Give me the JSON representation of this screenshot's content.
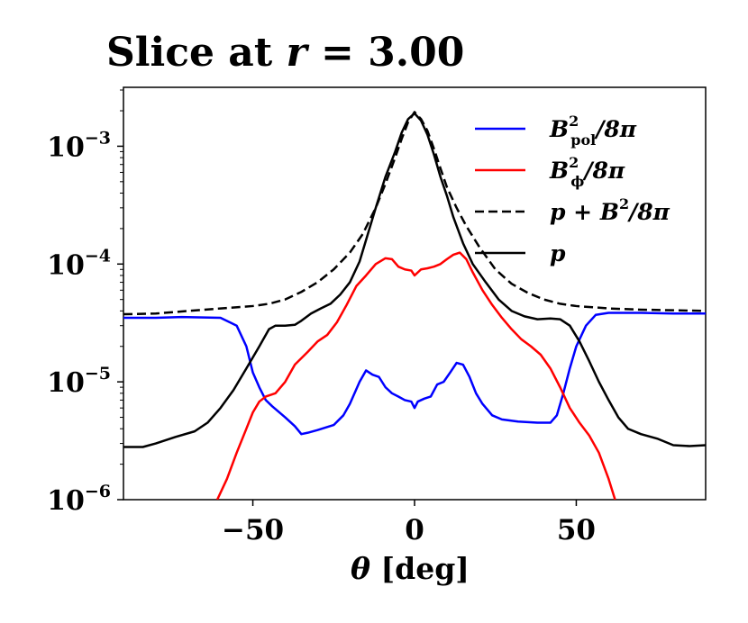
{
  "chart_data": {
    "type": "line",
    "title_prefix": "Slice at ",
    "title_var": "r",
    "title_eq": " = ",
    "title_value": "3.00",
    "xlabel_symbol": "θ",
    "xlabel_unit": " [deg]",
    "xlim": [
      -90,
      90
    ],
    "ylim_log10": [
      -6,
      -2.5
    ],
    "yscale": "log",
    "x_ticks": [
      -50,
      0,
      50
    ],
    "x_tick_labels": [
      "−50",
      "0",
      "50"
    ],
    "y_ticks": [
      {
        "exp": -3,
        "base": "10",
        "exp_label": "−3"
      },
      {
        "exp": -4,
        "base": "10",
        "exp_label": "−4"
      },
      {
        "exp": -5,
        "base": "10",
        "exp_label": "−5"
      },
      {
        "exp": -6,
        "base": "10",
        "exp_label": "−6"
      }
    ],
    "legend_position": "top-right",
    "series": [
      {
        "name": "B_pol^2/8π",
        "label_main": "B",
        "label_sup": "2",
        "label_sub": "pol",
        "label_rest": "/8π",
        "color": "#0000ff",
        "style": "solid",
        "points": [
          [
            -90,
            3.5e-05
          ],
          [
            -80,
            3.5e-05
          ],
          [
            -72,
            3.55e-05
          ],
          [
            -60,
            3.5e-05
          ],
          [
            -55,
            3e-05
          ],
          [
            -52,
            2e-05
          ],
          [
            -50,
            1.2e-05
          ],
          [
            -48,
            9e-06
          ],
          [
            -46,
            7e-06
          ],
          [
            -44,
            6.2e-06
          ],
          [
            -40,
            5e-06
          ],
          [
            -37,
            4.2e-06
          ],
          [
            -35,
            3.6e-06
          ],
          [
            -33,
            3.7e-06
          ],
          [
            -30,
            3.9e-06
          ],
          [
            -25,
            4.3e-06
          ],
          [
            -22,
            5.2e-06
          ],
          [
            -20,
            6.5e-06
          ],
          [
            -17,
            1e-05
          ],
          [
            -15,
            1.25e-05
          ],
          [
            -13,
            1.15e-05
          ],
          [
            -11,
            1.1e-05
          ],
          [
            -9,
            9e-06
          ],
          [
            -7,
            8e-06
          ],
          [
            -5,
            7.5e-06
          ],
          [
            -3,
            7e-06
          ],
          [
            -1,
            6.8e-06
          ],
          [
            0,
            6e-06
          ],
          [
            1,
            6.8e-06
          ],
          [
            3,
            7.2e-06
          ],
          [
            5,
            7.5e-06
          ],
          [
            7,
            9.5e-06
          ],
          [
            9,
            1e-05
          ],
          [
            11,
            1.2e-05
          ],
          [
            13,
            1.45e-05
          ],
          [
            15,
            1.4e-05
          ],
          [
            17,
            1.1e-05
          ],
          [
            19,
            8e-06
          ],
          [
            21,
            6.5e-06
          ],
          [
            24,
            5.2e-06
          ],
          [
            27,
            4.8e-06
          ],
          [
            32,
            4.6e-06
          ],
          [
            38,
            4.5e-06
          ],
          [
            42,
            4.5e-06
          ],
          [
            44,
            5.2e-06
          ],
          [
            46,
            8e-06
          ],
          [
            48,
            1.3e-05
          ],
          [
            50,
            2e-05
          ],
          [
            53,
            3e-05
          ],
          [
            56,
            3.7e-05
          ],
          [
            60,
            3.85e-05
          ],
          [
            70,
            3.85e-05
          ],
          [
            80,
            3.8e-05
          ],
          [
            90,
            3.8e-05
          ]
        ]
      },
      {
        "name": "B_phi^2/8π",
        "label_main": "B",
        "label_sup": "2",
        "label_sub": "ϕ",
        "label_rest": "/8π",
        "color": "#ff0000",
        "style": "solid",
        "points": [
          [
            -61,
            1e-06
          ],
          [
            -58,
            1.5e-06
          ],
          [
            -55,
            2.5e-06
          ],
          [
            -52,
            4e-06
          ],
          [
            -50,
            5.5e-06
          ],
          [
            -48,
            6.8e-06
          ],
          [
            -46,
            7.5e-06
          ],
          [
            -43,
            8e-06
          ],
          [
            -40,
            1e-05
          ],
          [
            -37,
            1.4e-05
          ],
          [
            -33,
            1.8e-05
          ],
          [
            -30,
            2.2e-05
          ],
          [
            -27,
            2.5e-05
          ],
          [
            -24,
            3.2e-05
          ],
          [
            -21,
            4.5e-05
          ],
          [
            -18,
            6.5e-05
          ],
          [
            -15,
            8e-05
          ],
          [
            -12,
            0.0001
          ],
          [
            -9,
            0.000112
          ],
          [
            -7,
            0.00011
          ],
          [
            -5,
            9.5e-05
          ],
          [
            -3,
            9e-05
          ],
          [
            -1,
            8.8e-05
          ],
          [
            0,
            8e-05
          ],
          [
            2,
            9e-05
          ],
          [
            4,
            9.2e-05
          ],
          [
            6,
            9.5e-05
          ],
          [
            8,
            0.0001
          ],
          [
            10,
            0.00011
          ],
          [
            12,
            0.00012
          ],
          [
            14,
            0.000125
          ],
          [
            16,
            0.00011
          ],
          [
            18,
            8.5e-05
          ],
          [
            21,
            6e-05
          ],
          [
            24,
            4.5e-05
          ],
          [
            27,
            3.5e-05
          ],
          [
            30,
            2.8e-05
          ],
          [
            33,
            2.3e-05
          ],
          [
            36,
            2e-05
          ],
          [
            39,
            1.7e-05
          ],
          [
            42,
            1.3e-05
          ],
          [
            45,
            9e-06
          ],
          [
            48,
            6e-06
          ],
          [
            51,
            4.5e-06
          ],
          [
            54,
            3.5e-06
          ],
          [
            57,
            2.5e-06
          ],
          [
            60,
            1.5e-06
          ],
          [
            62,
            1e-06
          ]
        ]
      },
      {
        "name": "p + B^2/8π",
        "label_main": "p + B",
        "label_sup": "2",
        "label_sub": "",
        "label_rest": "/8π",
        "color": "#000000",
        "style": "dashed",
        "points": [
          [
            -90,
            3.75e-05
          ],
          [
            -80,
            3.8e-05
          ],
          [
            -70,
            4e-05
          ],
          [
            -60,
            4.2e-05
          ],
          [
            -50,
            4.4e-05
          ],
          [
            -45,
            4.6e-05
          ],
          [
            -40,
            5e-05
          ],
          [
            -35,
            5.8e-05
          ],
          [
            -30,
            7e-05
          ],
          [
            -25,
            9e-05
          ],
          [
            -20,
            0.000125
          ],
          [
            -16,
            0.00018
          ],
          [
            -12,
            0.0003
          ],
          [
            -9,
            0.00048
          ],
          [
            -6,
            0.0008
          ],
          [
            -4,
            0.00115
          ],
          [
            -2,
            0.0016
          ],
          [
            0,
            0.00195
          ],
          [
            2,
            0.0017
          ],
          [
            4,
            0.00135
          ],
          [
            6,
            0.00095
          ],
          [
            8,
            0.00065
          ],
          [
            10,
            0.00045
          ],
          [
            13,
            0.0003
          ],
          [
            16,
            0.00021
          ],
          [
            20,
            0.00014
          ],
          [
            25,
            9e-05
          ],
          [
            30,
            6.8e-05
          ],
          [
            35,
            5.7e-05
          ],
          [
            40,
            5e-05
          ],
          [
            45,
            4.6e-05
          ],
          [
            50,
            4.4e-05
          ],
          [
            55,
            4.3e-05
          ],
          [
            60,
            4.2e-05
          ],
          [
            70,
            4.1e-05
          ],
          [
            80,
            4.05e-05
          ],
          [
            90,
            4e-05
          ]
        ]
      },
      {
        "name": "p",
        "label_main": "p",
        "label_sup": "",
        "label_sub": "",
        "label_rest": "",
        "color": "#000000",
        "style": "solid",
        "points": [
          [
            -90,
            2.8e-06
          ],
          [
            -84,
            2.8e-06
          ],
          [
            -80,
            3e-06
          ],
          [
            -74,
            3.4e-06
          ],
          [
            -68,
            3.8e-06
          ],
          [
            -64,
            4.5e-06
          ],
          [
            -60,
            6e-06
          ],
          [
            -56,
            8.5e-06
          ],
          [
            -52,
            1.3e-05
          ],
          [
            -48,
            2e-05
          ],
          [
            -45,
            2.8e-05
          ],
          [
            -43,
            3e-05
          ],
          [
            -40,
            3e-05
          ],
          [
            -37,
            3.05e-05
          ],
          [
            -35,
            3.3e-05
          ],
          [
            -32,
            3.8e-05
          ],
          [
            -29,
            4.2e-05
          ],
          [
            -26,
            4.6e-05
          ],
          [
            -23,
            5.5e-05
          ],
          [
            -20,
            7e-05
          ],
          [
            -17,
            0.000105
          ],
          [
            -15,
            0.00016
          ],
          [
            -12,
            0.0003
          ],
          [
            -9,
            0.00055
          ],
          [
            -6,
            0.0009
          ],
          [
            -4,
            0.0013
          ],
          [
            -2,
            0.0017
          ],
          [
            0,
            0.0019
          ],
          [
            2,
            0.00165
          ],
          [
            4,
            0.00125
          ],
          [
            6,
            0.00085
          ],
          [
            8,
            0.00055
          ],
          [
            10,
            0.00038
          ],
          [
            12,
            0.00025
          ],
          [
            15,
            0.00015
          ],
          [
            18,
            0.0001
          ],
          [
            22,
            7e-05
          ],
          [
            26,
            5e-05
          ],
          [
            30,
            4e-05
          ],
          [
            34,
            3.6e-05
          ],
          [
            38,
            3.4e-05
          ],
          [
            42,
            3.45e-05
          ],
          [
            45,
            3.4e-05
          ],
          [
            48,
            3e-05
          ],
          [
            51,
            2.2e-05
          ],
          [
            54,
            1.5e-05
          ],
          [
            57,
            1e-05
          ],
          [
            60,
            7e-06
          ],
          [
            63,
            5e-06
          ],
          [
            66,
            4e-06
          ],
          [
            70,
            3.6e-06
          ],
          [
            75,
            3.3e-06
          ],
          [
            80,
            2.9e-06
          ],
          [
            85,
            2.85e-06
          ],
          [
            90,
            2.9e-06
          ]
        ]
      }
    ]
  }
}
